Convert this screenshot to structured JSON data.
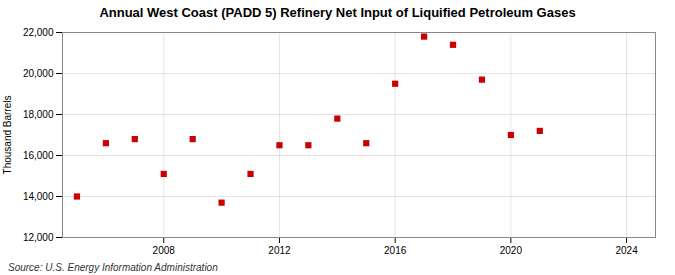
{
  "chart_data": {
    "type": "scatter",
    "title": "Annual West Coast (PADD 5) Refinery Net Input of Liquified Petroleum Gases",
    "ylabel": "Thousand Barrels",
    "source": "Source: U.S. Energy Information Administration",
    "x": [
      2005,
      2006,
      2007,
      2008,
      2009,
      2010,
      2011,
      2012,
      2013,
      2014,
      2015,
      2016,
      2017,
      2018,
      2019,
      2020,
      2021
    ],
    "values": [
      14000,
      16600,
      16800,
      15100,
      16800,
      13700,
      15100,
      16500,
      16500,
      17800,
      16600,
      19500,
      21800,
      21400,
      19700,
      17000,
      17200
    ],
    "color": "#cc0000",
    "marker": "square",
    "xlim": [
      2004.5,
      2025
    ],
    "xticks": [
      2008,
      2012,
      2016,
      2020,
      2024
    ],
    "ylim": [
      12000,
      22000
    ],
    "yticks": [
      {
        "value": 12000,
        "label": "12,000"
      },
      {
        "value": 14000,
        "label": "14,000"
      },
      {
        "value": 16000,
        "label": "16,000"
      },
      {
        "value": 18000,
        "label": "18,000"
      },
      {
        "value": 20000,
        "label": "20,000"
      },
      {
        "value": 22000,
        "label": "22,000"
      }
    ],
    "grid": true
  }
}
